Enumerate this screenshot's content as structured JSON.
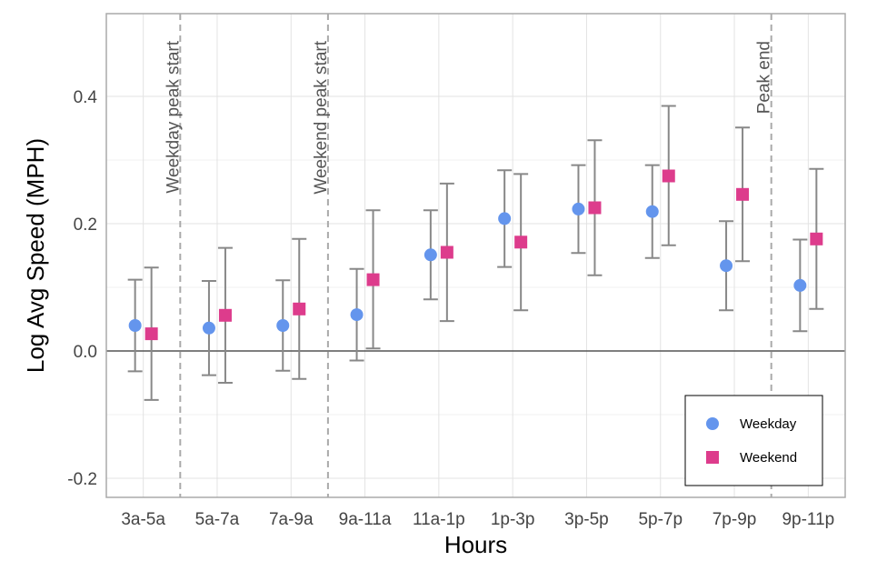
{
  "chart_data": {
    "type": "scatter",
    "xlabel": "Hours",
    "ylabel": "Log Avg Speed (MPH)",
    "ylim": [
      -0.23,
      0.53
    ],
    "yticks": [
      -0.2,
      0.0,
      0.2,
      0.4
    ],
    "ytick_labels": [
      "-0.2",
      "0.0",
      "0.2",
      "0.4"
    ],
    "categories": [
      "3a-5a",
      "5a-7a",
      "7a-9a",
      "9a-11a",
      "11a-1p",
      "1p-3p",
      "3p-5p",
      "5p-7p",
      "7p-9p",
      "9p-11p"
    ],
    "series": [
      {
        "name": "Weekday",
        "marker": "circle",
        "color": "#6495ED",
        "values": [
          0.04,
          0.036,
          0.04,
          0.057,
          0.151,
          0.208,
          0.223,
          0.219,
          0.134,
          0.103
        ],
        "lower": [
          -0.032,
          -0.038,
          -0.031,
          -0.015,
          0.081,
          0.132,
          0.154,
          0.146,
          0.064,
          0.031
        ],
        "upper": [
          0.112,
          0.11,
          0.111,
          0.129,
          0.221,
          0.284,
          0.292,
          0.292,
          0.204,
          0.175
        ]
      },
      {
        "name": "Weekend",
        "marker": "square",
        "color": "#DD3C8C",
        "values": [
          0.027,
          0.056,
          0.066,
          0.112,
          0.155,
          0.171,
          0.225,
          0.275,
          0.246,
          0.176
        ],
        "lower": [
          -0.077,
          -0.05,
          -0.044,
          0.004,
          0.047,
          0.064,
          0.119,
          0.166,
          0.141,
          0.066
        ],
        "upper": [
          0.131,
          0.162,
          0.176,
          0.221,
          0.263,
          0.278,
          0.331,
          0.385,
          0.351,
          0.286
        ]
      }
    ],
    "reference_lines": [
      {
        "after_category": "3a-5a",
        "label": "Weekday peak start"
      },
      {
        "after_category": "7a-9a",
        "label": "Weekend peak start"
      },
      {
        "after_category": "7p-9p",
        "label": "Peak end"
      }
    ],
    "zero_line": true,
    "grid": true,
    "legend_position": "bottom-right",
    "errorbar_color": "#888888"
  }
}
